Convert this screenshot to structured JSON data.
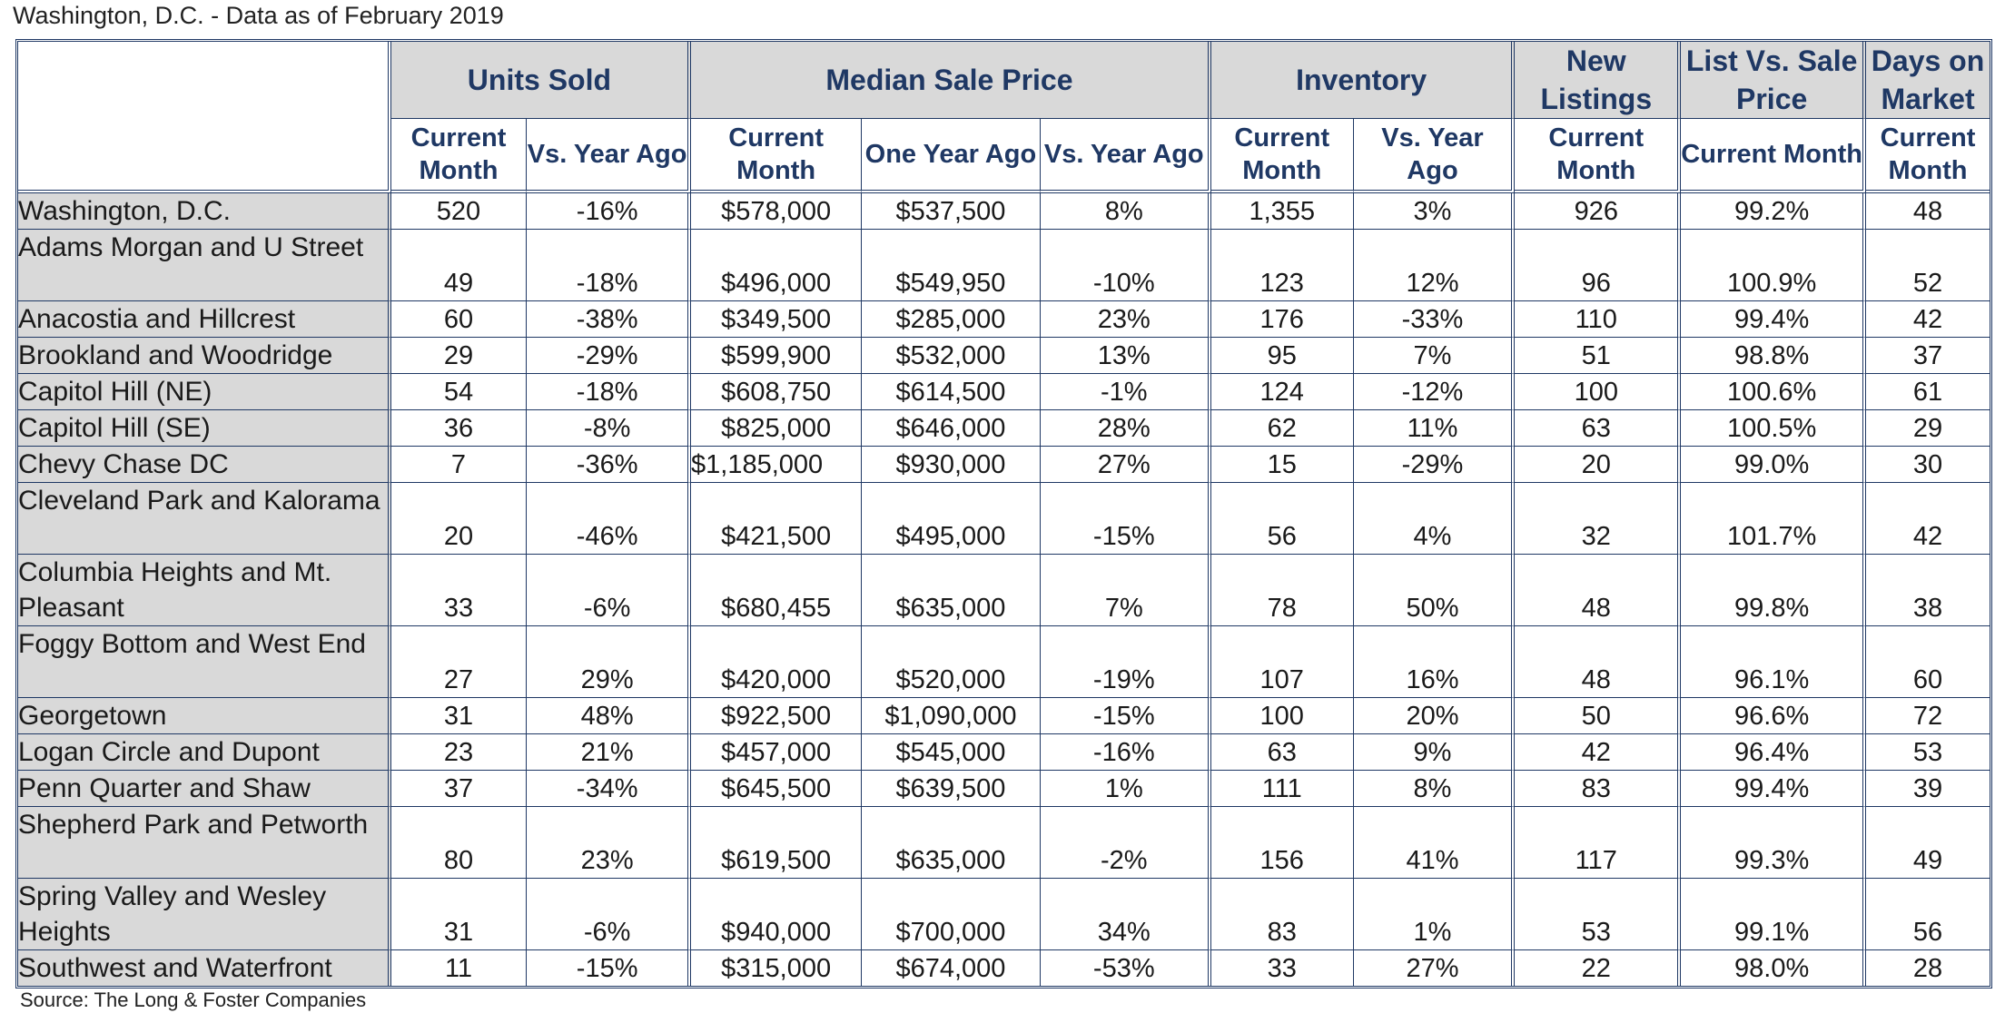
{
  "title": "Washington, D.C. - Data as of February 2019",
  "source": "Source: The Long & Foster Companies",
  "colors": {
    "header_text": "#1f3864",
    "shade": "#d9d9d9",
    "border": "#1f3864"
  },
  "groups": [
    {
      "label": "Units Sold"
    },
    {
      "label": "Median Sale Price"
    },
    {
      "label": "Inventory"
    },
    {
      "label": "New Listings"
    },
    {
      "label": "List Vs. Sale Price"
    },
    {
      "label": "Days on Market"
    }
  ],
  "subheaders": [
    "Current Month",
    "Vs. Year Ago",
    "Current Month",
    "One Year Ago",
    "Vs. Year Ago",
    "Current Month",
    "Vs. Year Ago",
    "Current Month",
    "Current Month",
    "Current Month"
  ],
  "rows": [
    {
      "name": "Washington, D.C.",
      "cells": [
        "520",
        "-16%",
        "$578,000",
        "$537,500",
        "8%",
        "1,355",
        "3%",
        "926",
        "99.2%",
        "48"
      ]
    },
    {
      "name": "Adams Morgan and U Street",
      "cells": [
        "49",
        "-18%",
        "$496,000",
        "$549,950",
        "-10%",
        "123",
        "12%",
        "96",
        "100.9%",
        "52"
      ]
    },
    {
      "name": "Anacostia and Hillcrest",
      "cells": [
        "60",
        "-38%",
        "$349,500",
        "$285,000",
        "23%",
        "176",
        "-33%",
        "110",
        "99.4%",
        "42"
      ]
    },
    {
      "name": "Brookland and Woodridge",
      "cells": [
        "29",
        "-29%",
        "$599,900",
        "$532,000",
        "13%",
        "95",
        "7%",
        "51",
        "98.8%",
        "37"
      ]
    },
    {
      "name": "Capitol Hill (NE)",
      "cells": [
        "54",
        "-18%",
        "$608,750",
        "$614,500",
        "-1%",
        "124",
        "-12%",
        "100",
        "100.6%",
        "61"
      ]
    },
    {
      "name": "Capitol Hill (SE)",
      "cells": [
        "36",
        "-8%",
        "$825,000",
        "$646,000",
        "28%",
        "62",
        "11%",
        "63",
        "100.5%",
        "29"
      ]
    },
    {
      "name": "Chevy Chase DC",
      "cells": [
        "7",
        "-36%",
        "$1,185,000",
        "$930,000",
        "27%",
        "15",
        "-29%",
        "20",
        "99.0%",
        "30"
      ]
    },
    {
      "name": "Cleveland Park and Kalorama",
      "cells": [
        "20",
        "-46%",
        "$421,500",
        "$495,000",
        "-15%",
        "56",
        "4%",
        "32",
        "101.7%",
        "42"
      ]
    },
    {
      "name": "Columbia Heights and Mt. Pleasant",
      "cells": [
        "33",
        "-6%",
        "$680,455",
        "$635,000",
        "7%",
        "78",
        "50%",
        "48",
        "99.8%",
        "38"
      ]
    },
    {
      "name": "Foggy Bottom and West End",
      "cells": [
        "27",
        "29%",
        "$420,000",
        "$520,000",
        "-19%",
        "107",
        "16%",
        "48",
        "96.1%",
        "60"
      ]
    },
    {
      "name": "Georgetown",
      "cells": [
        "31",
        "48%",
        "$922,500",
        "$1,090,000",
        "-15%",
        "100",
        "20%",
        "50",
        "96.6%",
        "72"
      ]
    },
    {
      "name": "Logan Circle and Dupont",
      "cells": [
        "23",
        "21%",
        "$457,000",
        "$545,000",
        "-16%",
        "63",
        "9%",
        "42",
        "96.4%",
        "53"
      ]
    },
    {
      "name": "Penn Quarter and Shaw",
      "cells": [
        "37",
        "-34%",
        "$645,500",
        "$639,500",
        "1%",
        "111",
        "8%",
        "83",
        "99.4%",
        "39"
      ]
    },
    {
      "name": "Shepherd Park and Petworth",
      "cells": [
        "80",
        "23%",
        "$619,500",
        "$635,000",
        "-2%",
        "156",
        "41%",
        "117",
        "99.3%",
        "49"
      ]
    },
    {
      "name": "Spring Valley and Wesley Heights",
      "cells": [
        "31",
        "-6%",
        "$940,000",
        "$700,000",
        "34%",
        "83",
        "1%",
        "53",
        "99.1%",
        "56"
      ]
    },
    {
      "name": "Southwest and Waterfront",
      "cells": [
        "11",
        "-15%",
        "$315,000",
        "$674,000",
        "-53%",
        "33",
        "27%",
        "22",
        "98.0%",
        "28"
      ]
    }
  ]
}
